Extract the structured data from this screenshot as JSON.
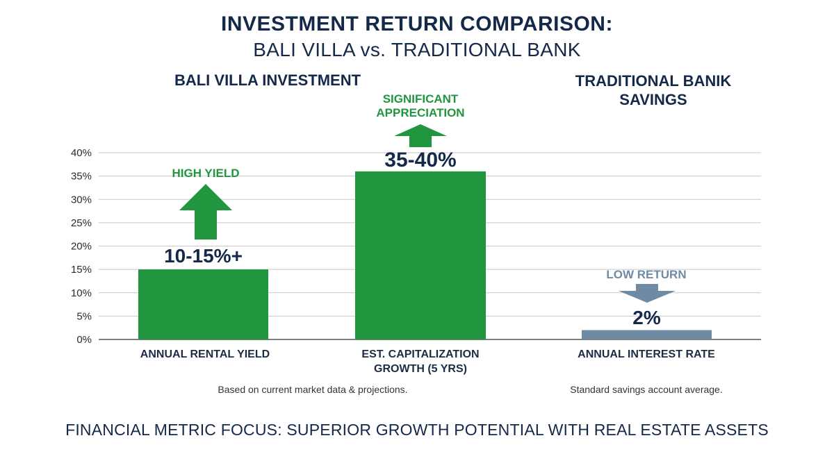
{
  "title": "INVESTMENT RETURN COMPARISON:",
  "subtitle": "BALI VILLA vs. TRADITIONAL BANK",
  "groups": {
    "left": "BALI VILLA INVESTMENT",
    "right": "TRADITIONAL BANIK SAVINGS"
  },
  "notes": {
    "left": "Based on current market data & projections.",
    "right": "Standard savings account average."
  },
  "footer": "FINANCIAL METRIC FOCUS: SUPERIOR GROWTH POTENTIAL WITH REAL ESTATE ASSETS",
  "colors": {
    "green": "#21963f",
    "slate": "#6f8aa3",
    "navy": "#14284a",
    "grid": "#c8c8c8"
  },
  "chart_data": {
    "type": "bar",
    "categories": [
      "ANNUAL RENTAL YIELD",
      "EST. CAPITALIZATION GROWTH (5 YRS)",
      "ANNUAL INTEREST RATE"
    ],
    "values": [
      15,
      36,
      2
    ],
    "value_labels": [
      "10-15%+",
      "35-40%",
      "2%"
    ],
    "annotations": [
      {
        "text": "HIGH YIELD",
        "direction": "up",
        "color": "#21963f"
      },
      {
        "text": "SIGNIFICANT APPRECIATION",
        "direction": "up",
        "color": "#21963f"
      },
      {
        "text": "LOW RETURN",
        "direction": "down",
        "color": "#6f8aa3"
      }
    ],
    "bar_colors": [
      "#21963f",
      "#21963f",
      "#6f8aa3"
    ],
    "yticks": [
      "0%",
      "5%",
      "10%",
      "15%",
      "20%",
      "25%",
      "30%",
      "35%",
      "40%"
    ],
    "ylim": [
      0,
      40
    ],
    "grid": true
  }
}
